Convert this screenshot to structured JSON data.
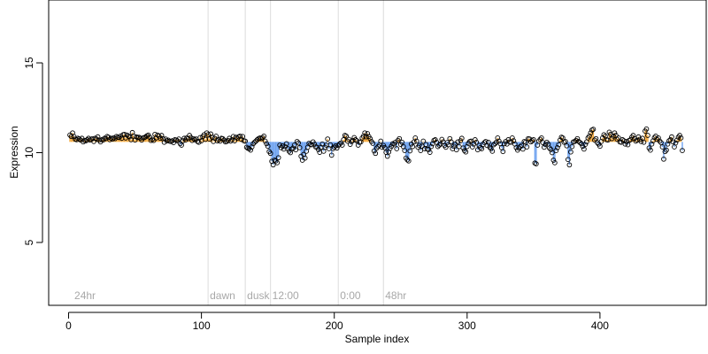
{
  "chart_data": {
    "type": "scatter",
    "title": "",
    "xlabel": "Sample index",
    "ylabel": "Expression",
    "xlim": [
      -15,
      480
    ],
    "ylim": [
      1.5,
      18.5
    ],
    "xticks": [
      0,
      100,
      200,
      300,
      400
    ],
    "yticks": [
      5,
      10,
      15
    ],
    "baseline": 10.6,
    "colors": {
      "above": "#f3a83b",
      "below": "#6fa3f0",
      "point_stroke": "#000000",
      "phase_line": "#dcdcdc",
      "phase_label": "#a8a8a8"
    },
    "phases": [
      {
        "x": 3,
        "label": "24hr",
        "line": false
      },
      {
        "x": 105,
        "label": "dawn",
        "line": true
      },
      {
        "x": 133,
        "label": "dusk",
        "line": true
      },
      {
        "x": 152,
        "label": "12:00",
        "line": true
      },
      {
        "x": 203,
        "label": "0:00",
        "line": true
      },
      {
        "x": 237,
        "label": "48hr",
        "line": true
      }
    ],
    "values": [
      10.98,
      10.9,
      11.1,
      10.9,
      10.75,
      10.72,
      10.8,
      10.76,
      10.7,
      10.8,
      10.6,
      10.68,
      10.66,
      10.72,
      10.8,
      10.7,
      10.74,
      10.78,
      10.62,
      10.8,
      10.76,
      10.88,
      10.7,
      10.6,
      10.72,
      10.7,
      10.8,
      10.78,
      10.9,
      10.86,
      10.72,
      10.8,
      10.76,
      10.82,
      10.78,
      10.9,
      10.86,
      10.84,
      10.92,
      10.8,
      11.0,
      11.02,
      10.82,
      10.98,
      10.92,
      10.88,
      10.72,
      11.12,
      10.92,
      10.7,
      10.88,
      10.84,
      10.86,
      10.8,
      10.7,
      10.82,
      10.84,
      10.88,
      10.94,
      10.98,
      10.86,
      10.68,
      10.74,
      10.68,
      11.02,
      10.82,
      10.98,
      10.92,
      10.8,
      10.96,
      10.78,
      10.58,
      10.76,
      10.66,
      10.7,
      10.64,
      10.62,
      10.66,
      10.56,
      10.72,
      10.7,
      10.66,
      10.76,
      10.5,
      10.42,
      10.66,
      10.8,
      10.7,
      10.82,
      10.78,
      10.96,
      10.84,
      10.68,
      10.78,
      10.72,
      10.76,
      10.62,
      10.58,
      10.84,
      10.66,
      10.9,
      11.0,
      10.74,
      11.1,
      11.0,
      10.76,
      11.04,
      10.86,
      10.62,
      10.8,
      10.92,
      10.66,
      10.72,
      10.64,
      10.8,
      10.78,
      10.7,
      10.6,
      10.62,
      10.68,
      10.8,
      10.64,
      10.72,
      10.9,
      10.66,
      10.86,
      10.8,
      10.88,
      10.92,
      10.74,
      10.9,
      10.66,
      10.64,
      10.3,
      10.24,
      10.22,
      10.14,
      10.32,
      10.5,
      10.58,
      10.64,
      10.72,
      10.78,
      10.82,
      10.78,
      10.84,
      10.92,
      10.64,
      10.5,
      10.36,
      10.06,
      9.96,
      9.52,
      9.32,
      9.58,
      9.54,
      9.44,
      9.72,
      10.42,
      10.28,
      10.38,
      10.2,
      10.34,
      10.5,
      10.22,
      10.08,
      10.0,
      10.2,
      10.26,
      10.42,
      10.16,
      10.62,
      10.54,
      10.28,
      9.8,
      9.58,
      9.9,
      9.7,
      10.08,
      10.3,
      10.52,
      10.46,
      10.44,
      10.6,
      10.48,
      10.32,
      10.3,
      10.18,
      10.02,
      10.3,
      10.48,
      10.08,
      10.3,
      10.42,
      10.76,
      10.22,
      10.44,
      9.86,
      10.22,
      10.3,
      10.38,
      10.26,
      10.4,
      10.48,
      10.54,
      10.42,
      10.72,
      10.96,
      10.92,
      10.64,
      10.74,
      10.46,
      10.62,
      10.68,
      10.84,
      10.72,
      10.66,
      10.42,
      10.58,
      10.6,
      10.82,
      10.92,
      11.1,
      10.88,
      11.06,
      10.9,
      10.78,
      10.62,
      10.52,
      10.1,
      9.96,
      10.26,
      10.34,
      10.42,
      10.64,
      10.3,
      10.4,
      10.28,
      10.02,
      9.8,
      10.04,
      10.24,
      10.36,
      10.5,
      10.48,
      10.58,
      10.22,
      10.68,
      10.78,
      10.46,
      10.58,
      10.34,
      10.12,
      9.7,
      9.6,
      9.54,
      10.1,
      10.48,
      10.34,
      10.6,
      10.82,
      10.64,
      10.3,
      10.4,
      10.12,
      10.36,
      10.64,
      10.22,
      10.46,
      10.2,
      10.18,
      10.02,
      10.34,
      10.5,
      10.68,
      10.72,
      10.58,
      10.34,
      10.42,
      10.48,
      10.74,
      10.6,
      10.4,
      10.3,
      10.56,
      10.44,
      10.78,
      10.6,
      10.22,
      10.36,
      10.48,
      10.16,
      10.6,
      10.34,
      10.66,
      10.8,
      10.26,
      10.12,
      10.04,
      10.34,
      10.52,
      10.62,
      10.64,
      10.32,
      10.48,
      10.72,
      10.58,
      10.16,
      10.4,
      10.28,
      10.22,
      10.46,
      10.56,
      10.62,
      10.4,
      10.58,
      10.3,
      10.22,
      10.08,
      10.44,
      10.5,
      10.58,
      10.82,
      10.64,
      10.5,
      10.28,
      10.06,
      10.5,
      10.62,
      10.48,
      10.72,
      10.6,
      10.58,
      10.82,
      10.66,
      10.48,
      10.28,
      10.14,
      10.26,
      10.34,
      10.4,
      10.2,
      10.62,
      10.58,
      10.32,
      10.78,
      10.76,
      10.6,
      10.66,
      10.72,
      9.42,
      9.38,
      10.42,
      10.64,
      10.74,
      10.82,
      10.56,
      10.3,
      10.46,
      10.58,
      10.48,
      10.26,
      10.18,
      10.0,
      9.58,
      9.44,
      10.12,
      10.28,
      10.44,
      10.7,
      10.86,
      10.82,
      10.58,
      10.62,
      10.38,
      9.62,
      9.32,
      10.04,
      10.34,
      10.6,
      10.62,
      10.68,
      10.78,
      10.62,
      10.56,
      10.5,
      10.36,
      10.2,
      10.46,
      10.6,
      10.82,
      10.92,
      11.1,
      11.26,
      11.3,
      10.7,
      10.78,
      10.56,
      10.48,
      10.36,
      10.62,
      10.82,
      11.0,
      10.92,
      10.72,
      10.7,
      11.14,
      11.02,
      10.78,
      10.92,
      11.1,
      10.96,
      10.74,
      10.82,
      10.6,
      10.58,
      10.72,
      10.66,
      10.48,
      10.62,
      10.44,
      10.68,
      10.72,
      10.86,
      10.96,
      10.78,
      10.64,
      10.7,
      10.88,
      10.74,
      10.62,
      10.8,
      10.58,
      11.2,
      11.32,
      10.96,
      10.26,
      10.14,
      10.48,
      10.66,
      10.84,
      10.92,
      10.74,
      10.82,
      10.64,
      10.56,
      10.32,
      9.64,
      10.06,
      10.14,
      10.48,
      10.66,
      10.72,
      10.88,
      10.6,
      10.32,
      10.54,
      10.7,
      10.86,
      10.96,
      10.82,
      10.12
    ]
  }
}
